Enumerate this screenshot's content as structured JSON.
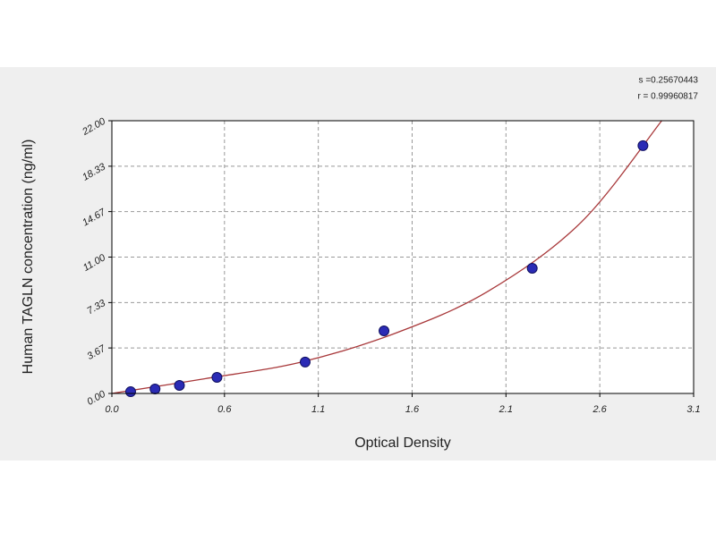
{
  "chart_data": {
    "type": "scatter",
    "x_label": "Optical Density",
    "y_label": "Human  TAGLN concentration (ng/ml)",
    "annotations": [
      "s =0.25670443",
      "r = 0.99960817"
    ],
    "x": [
      0.1,
      0.23,
      0.36,
      0.56,
      1.03,
      1.45,
      2.24,
      2.83
    ],
    "values": [
      0.14,
      0.36,
      0.65,
      1.3,
      2.53,
      5.05,
      10.1,
      19.99
    ],
    "color": "#2b2bb5",
    "fit": {
      "x": [
        0.0,
        0.5,
        1.0,
        1.5,
        2.0,
        2.5,
        2.93
      ],
      "values": [
        0,
        1.2,
        2.5,
        4.8,
        8.2,
        13.8,
        22
      ],
      "color": "#a8383a"
    },
    "xlim": [
      0,
      3.1
    ],
    "ylim": [
      0,
      22
    ],
    "xticks": [
      {
        "value": 0,
        "label": "0.0"
      },
      0.6,
      1.1,
      1.6,
      2.1,
      2.6,
      3.1
    ],
    "yticks": [
      {
        "value": 0,
        "label": "0.00"
      },
      3.67,
      7.33,
      {
        "value": 11,
        "label": "11.00"
      },
      14.67,
      18.33,
      {
        "value": 22,
        "label": "22.00"
      }
    ],
    "grid": true
  }
}
